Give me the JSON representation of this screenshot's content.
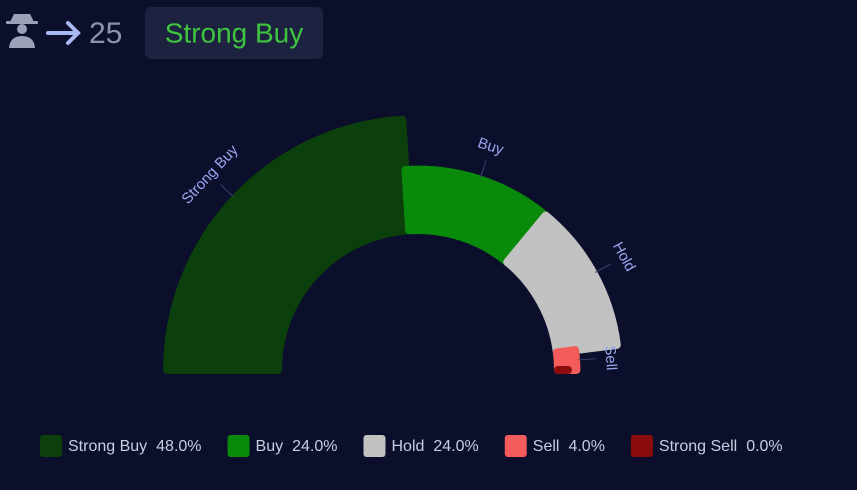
{
  "header": {
    "score": 25,
    "rating": "Strong Buy"
  },
  "chart_data": {
    "type": "pie",
    "categories": [
      "Strong Buy",
      "Buy",
      "Hold",
      "Sell",
      "Strong Sell"
    ],
    "values": [
      48,
      24,
      24,
      4,
      0
    ],
    "value_labels": [
      "48.0%",
      "24.0%",
      "24.0%",
      "4.0%",
      "0.0%"
    ],
    "colors": [
      "#0b3f0b",
      "#0a8a0a",
      "#c2c2c2",
      "#f45b5b",
      "#8b0c0c"
    ]
  }
}
